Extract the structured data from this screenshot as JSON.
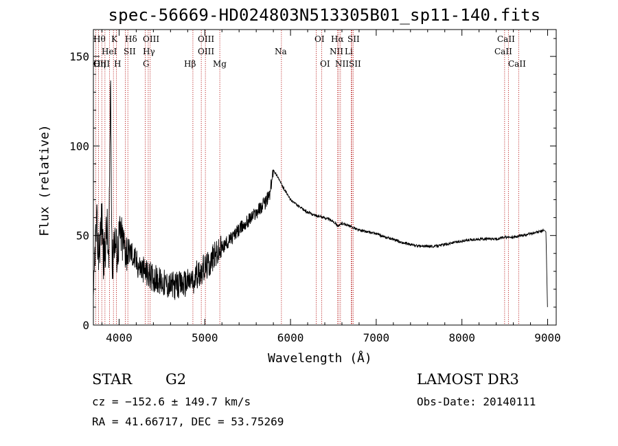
{
  "chart_data": {
    "type": "line",
    "title": "spec-56669-HD024803N513305B01_sp11-140.fits",
    "xlabel": "Wavelength (Å)",
    "ylabel": "Flux (relative)",
    "xlim": [
      3700,
      9100
    ],
    "ylim": [
      0,
      165
    ],
    "x_ticks": [
      4000,
      5000,
      6000,
      7000,
      8000,
      9000
    ],
    "y_ticks": [
      0,
      50,
      100,
      150
    ],
    "series": [
      {
        "name": "flux",
        "x": [
          3700,
          3720,
          3740,
          3760,
          3780,
          3800,
          3820,
          3840,
          3860,
          3880,
          3900,
          3920,
          3940,
          3960,
          3980,
          4000,
          4030,
          4060,
          4100,
          4150,
          4200,
          4250,
          4300,
          4340,
          4380,
          4420,
          4450,
          4500,
          4550,
          4600,
          4650,
          4700,
          4750,
          4800,
          4850,
          4870,
          4900,
          4950,
          5000,
          5050,
          5100,
          5150,
          5200,
          5300,
          5400,
          5500,
          5600,
          5700,
          5760,
          5780,
          5800,
          5820,
          5850,
          5900,
          5950,
          6000,
          6100,
          6200,
          6300,
          6400,
          6500,
          6563,
          6600,
          6700,
          6800,
          6900,
          7000,
          7100,
          7200,
          7300,
          7400,
          7500,
          7600,
          7700,
          7800,
          7900,
          8000,
          8200,
          8400,
          8500,
          8600,
          8700,
          8800,
          8900,
          8960,
          8980,
          8990,
          9000
        ],
        "y": [
          5,
          45,
          55,
          40,
          50,
          60,
          35,
          45,
          55,
          30,
          140,
          30,
          50,
          45,
          40,
          50,
          48,
          44,
          42,
          40,
          35,
          32,
          30,
          28,
          27,
          26,
          25,
          24,
          23,
          22,
          22,
          22,
          23,
          24,
          25,
          22,
          28,
          30,
          32,
          34,
          38,
          40,
          43,
          48,
          53,
          58,
          63,
          68,
          73,
          80,
          87,
          85,
          83,
          78,
          74,
          70,
          66,
          63,
          61,
          60,
          58,
          55,
          57,
          55,
          53,
          52,
          51,
          49,
          48,
          46,
          45,
          44,
          44,
          44,
          45,
          46,
          47,
          48,
          48,
          49,
          49,
          50,
          51,
          52,
          53,
          52,
          30,
          5
        ]
      }
    ],
    "lines": [
      {
        "name": "OII",
        "x": 3727
      },
      {
        "name": "OIII",
        "x": 3760
      },
      {
        "name": "Hθ",
        "x": 3798
      },
      {
        "name": "Hη",
        "x": 3835
      },
      {
        "name": "HeI",
        "x": 3889
      },
      {
        "name": "K",
        "x": 3934
      },
      {
        "name": "H",
        "x": 3968
      },
      {
        "name": "SII",
        "x": 4072
      },
      {
        "name": "Hδ",
        "x": 4102
      },
      {
        "name": "G",
        "x": 4305
      },
      {
        "name": "Hγ",
        "x": 4340
      },
      {
        "name": "OIII",
        "x": 4363
      },
      {
        "name": "Hβ",
        "x": 4861
      },
      {
        "name": "OIII",
        "x": 4959
      },
      {
        "name": "OIII",
        "x": 5007
      },
      {
        "name": "Mg",
        "x": 5175
      },
      {
        "name": "Na",
        "x": 5894
      },
      {
        "name": "OI",
        "x": 6300
      },
      {
        "name": "OI",
        "x": 6364
      },
      {
        "name": "NII",
        "x": 6548
      },
      {
        "name": "Hα",
        "x": 6563
      },
      {
        "name": "NII",
        "x": 6583
      },
      {
        "name": "Li",
        "x": 6708
      },
      {
        "name": "SII",
        "x": 6716
      },
      {
        "name": "SII",
        "x": 6731
      },
      {
        "name": "CaII",
        "x": 8498
      },
      {
        "name": "CaII",
        "x": 8542
      },
      {
        "name": "CaII",
        "x": 8662
      }
    ]
  },
  "info": {
    "object_type": "STAR",
    "spectral_class": "G2",
    "survey": "LAMOST DR3",
    "cz": "cz = −152.6 ± 149.7 km/s",
    "obs_date": "Obs-Date: 20140111",
    "coords": "RA =  41.66717, DEC =  53.75269"
  },
  "colors": {
    "axis": "#000000",
    "line": "#000000",
    "marker": "#b00000"
  }
}
